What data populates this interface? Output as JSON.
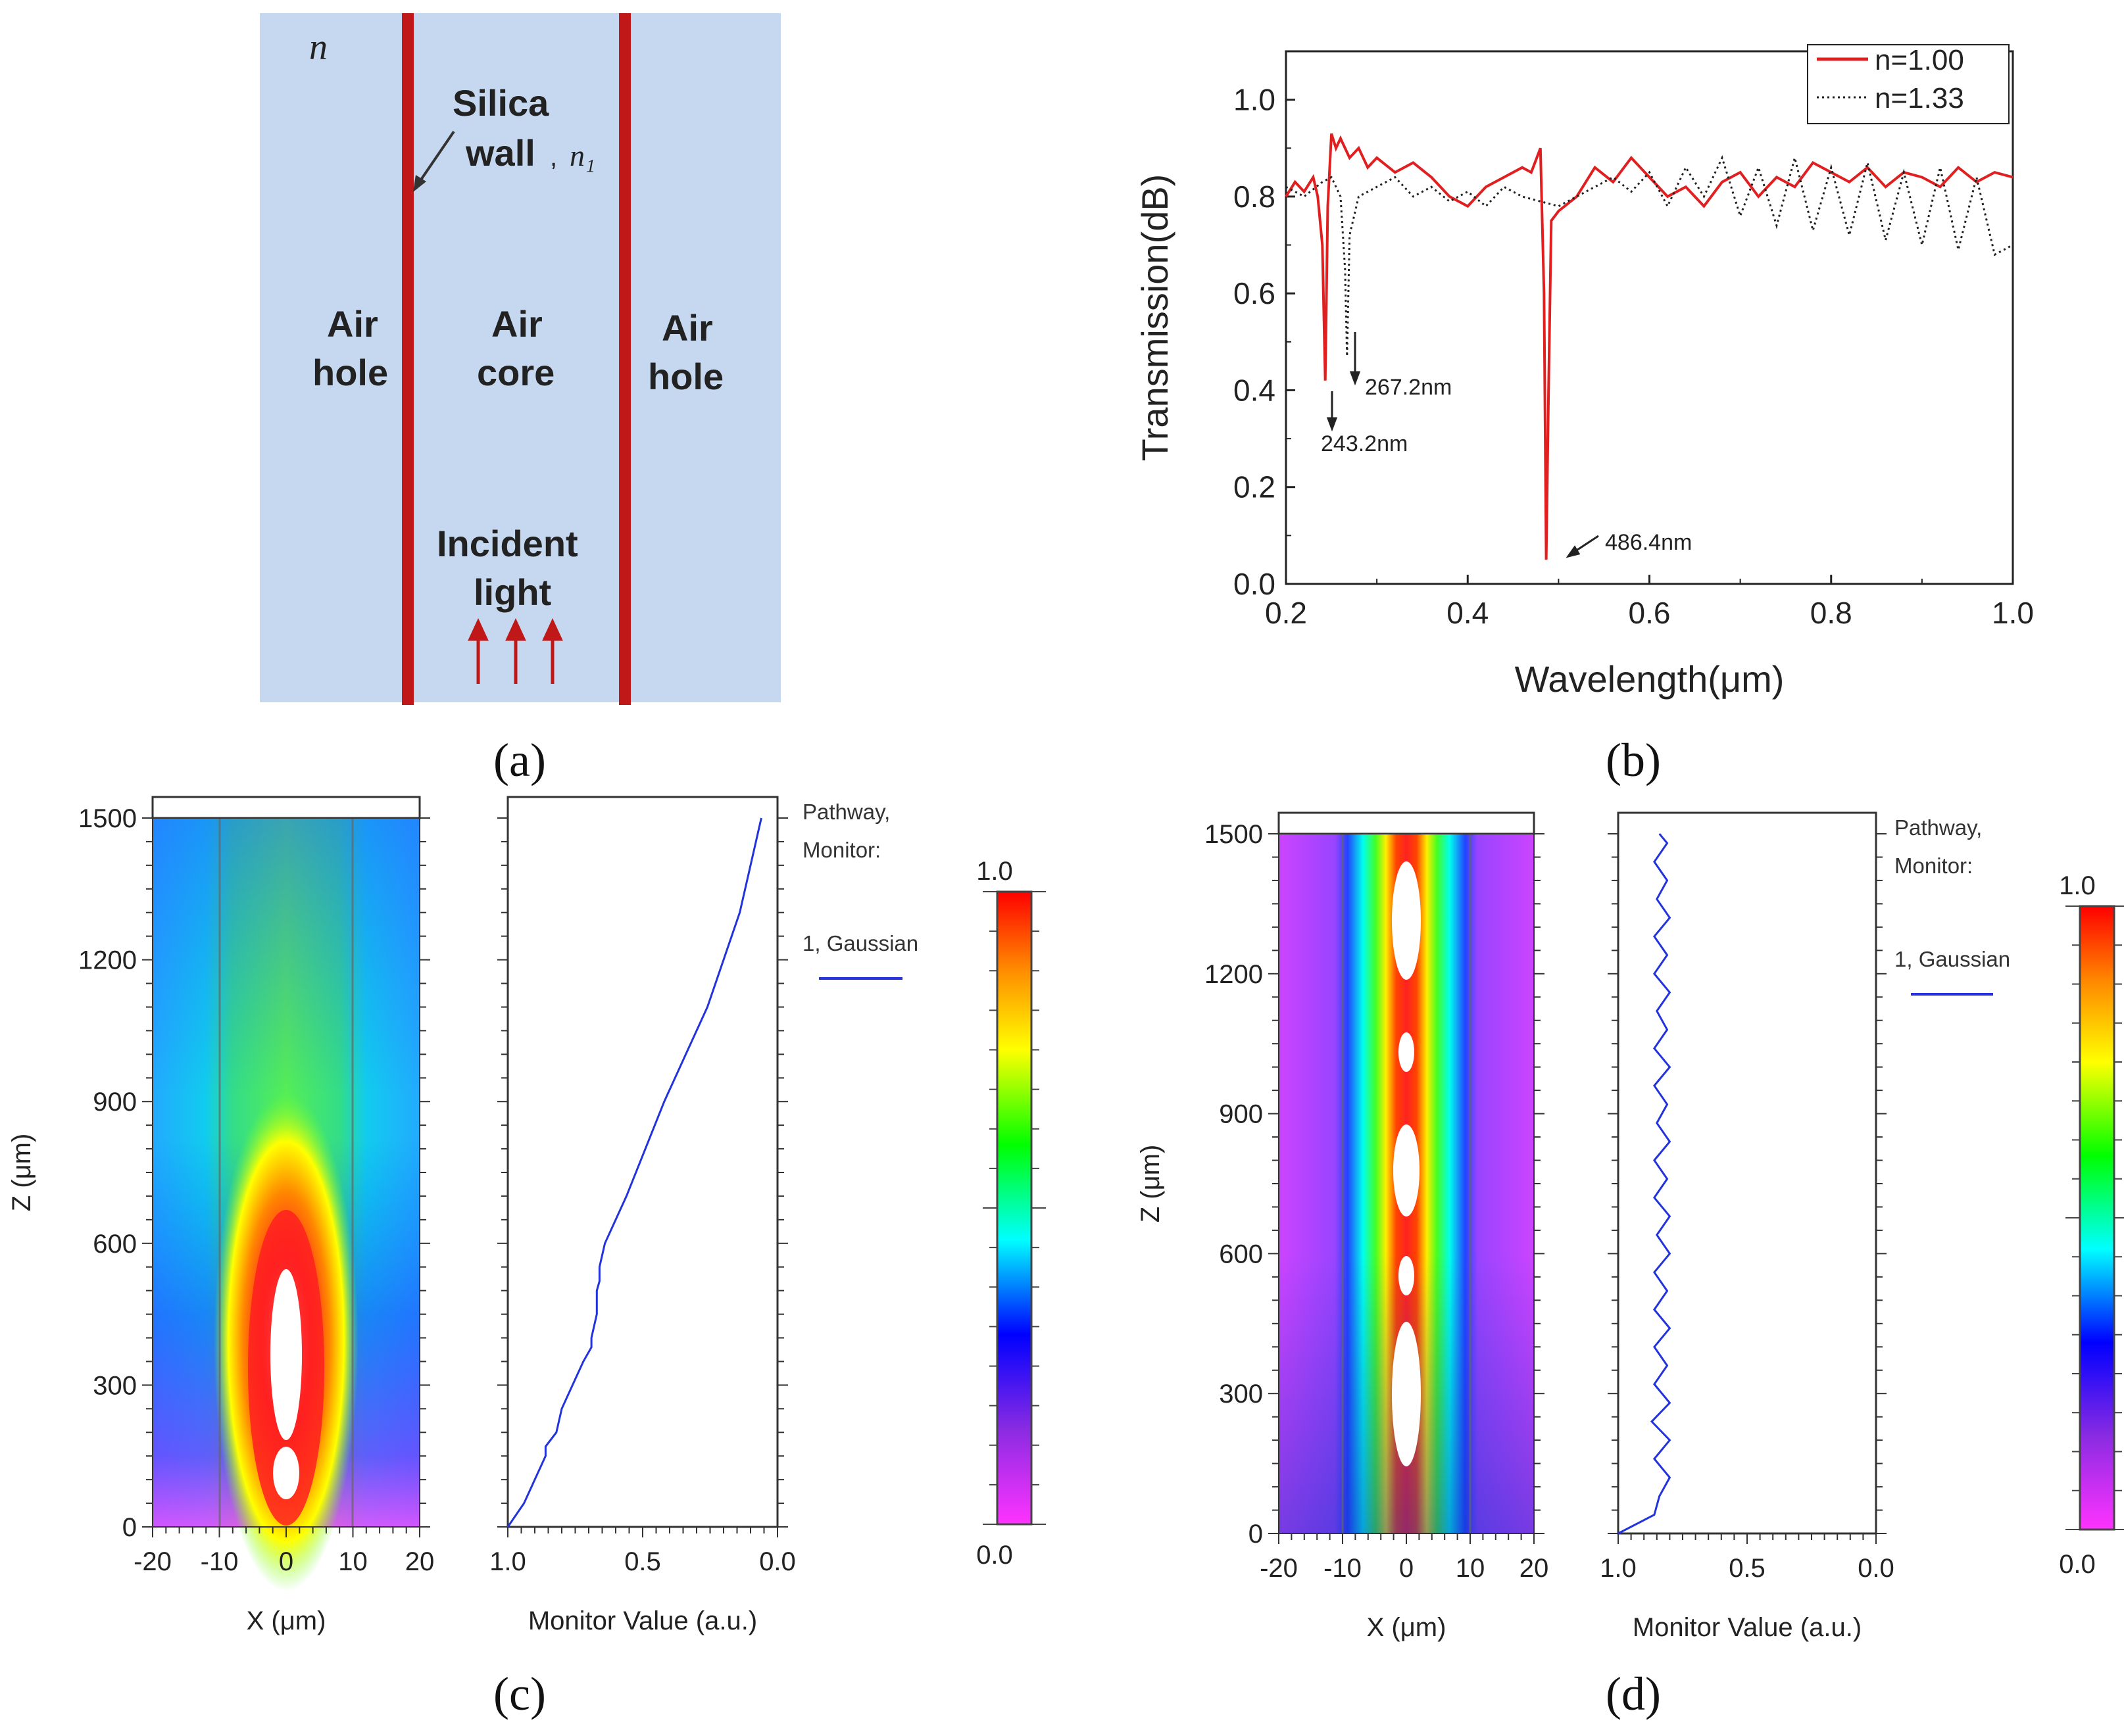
{
  "panels": {
    "a": {
      "label": "(a)",
      "n_label": "n",
      "silica": "Silica",
      "wall": "wall",
      "n1_label": "n₁",
      "air_hole": "Air",
      "hole": "hole",
      "air": "Air",
      "core": "core",
      "incident": "Incident",
      "light": "light",
      "colors": {
        "background": "#c6d8ef",
        "wall": "#c01818",
        "arrow": "#c01818"
      }
    },
    "b": {
      "label": "(b)",
      "annotations": [
        "267.2nm",
        "243.2nm",
        "486.4nm"
      ]
    },
    "c": {
      "label": "(c)",
      "legend_title_1": "Pathway,",
      "legend_title_2": "Monitor:",
      "legend_entry": "1, Gaussian",
      "colorbar_max": "1.0",
      "colorbar_min": "0.0"
    },
    "d": {
      "label": "(d)",
      "legend_title_1": "Pathway,",
      "legend_title_2": "Monitor:",
      "legend_entry": "1, Gaussian",
      "colorbar_max": "1.0",
      "colorbar_min": "0.0"
    }
  },
  "chart_data": [
    {
      "id": "b",
      "type": "line",
      "title": "",
      "xlabel": "Wavelength(μm)",
      "ylabel": "Transmission(dB)",
      "xlim": [
        0.2,
        1.0
      ],
      "ylim": [
        0.0,
        1.1
      ],
      "xticks": [
        "0.2",
        "0.4",
        "0.6",
        "0.8",
        "1.0"
      ],
      "yticks": [
        "0.0",
        "0.2",
        "0.4",
        "0.6",
        "0.8",
        "1.0"
      ],
      "legend": [
        "n=1.00",
        "n=1.33"
      ],
      "legend_position": "top-right",
      "series": [
        {
          "name": "n=1.00",
          "color": "#e02020",
          "style": "solid",
          "x": [
            0.2,
            0.21,
            0.22,
            0.23,
            0.235,
            0.24,
            0.2432,
            0.246,
            0.25,
            0.255,
            0.26,
            0.27,
            0.28,
            0.29,
            0.3,
            0.32,
            0.34,
            0.36,
            0.38,
            0.4,
            0.42,
            0.44,
            0.46,
            0.47,
            0.48,
            0.484,
            0.4864,
            0.489,
            0.492,
            0.5,
            0.52,
            0.54,
            0.56,
            0.58,
            0.6,
            0.62,
            0.64,
            0.66,
            0.68,
            0.7,
            0.72,
            0.74,
            0.76,
            0.78,
            0.8,
            0.82,
            0.84,
            0.86,
            0.88,
            0.9,
            0.92,
            0.94,
            0.96,
            0.98,
            1.0
          ],
          "y": [
            0.8,
            0.83,
            0.81,
            0.84,
            0.8,
            0.7,
            0.42,
            0.78,
            0.93,
            0.9,
            0.92,
            0.88,
            0.9,
            0.86,
            0.88,
            0.85,
            0.87,
            0.84,
            0.8,
            0.78,
            0.82,
            0.84,
            0.86,
            0.85,
            0.9,
            0.6,
            0.05,
            0.4,
            0.75,
            0.77,
            0.8,
            0.86,
            0.83,
            0.88,
            0.84,
            0.8,
            0.82,
            0.78,
            0.83,
            0.85,
            0.8,
            0.84,
            0.82,
            0.87,
            0.85,
            0.83,
            0.86,
            0.82,
            0.85,
            0.84,
            0.82,
            0.86,
            0.83,
            0.85,
            0.84
          ]
        },
        {
          "name": "n=1.33",
          "color": "#202020",
          "style": "dotted",
          "x": [
            0.2,
            0.22,
            0.24,
            0.25,
            0.26,
            0.265,
            0.2672,
            0.27,
            0.28,
            0.3,
            0.32,
            0.34,
            0.36,
            0.38,
            0.4,
            0.42,
            0.44,
            0.46,
            0.48,
            0.5,
            0.52,
            0.54,
            0.56,
            0.58,
            0.6,
            0.62,
            0.64,
            0.66,
            0.68,
            0.7,
            0.72,
            0.74,
            0.76,
            0.78,
            0.8,
            0.82,
            0.84,
            0.86,
            0.88,
            0.9,
            0.92,
            0.94,
            0.96,
            0.98,
            1.0
          ],
          "y": [
            0.82,
            0.8,
            0.83,
            0.84,
            0.8,
            0.65,
            0.47,
            0.72,
            0.8,
            0.82,
            0.84,
            0.8,
            0.82,
            0.79,
            0.81,
            0.78,
            0.82,
            0.8,
            0.79,
            0.78,
            0.8,
            0.82,
            0.84,
            0.81,
            0.85,
            0.78,
            0.86,
            0.8,
            0.88,
            0.76,
            0.86,
            0.74,
            0.88,
            0.73,
            0.86,
            0.72,
            0.87,
            0.71,
            0.85,
            0.7,
            0.86,
            0.69,
            0.84,
            0.68,
            0.7
          ]
        }
      ]
    },
    {
      "id": "c_field",
      "type": "heatmap",
      "xlabel": "X (μm)",
      "ylabel": "Z (μm)",
      "xlim": [
        -20,
        20
      ],
      "ylim": [
        0,
        1500
      ],
      "xticks": [
        "-20",
        "-10",
        "0",
        "10",
        "20"
      ],
      "yticks": [
        "0",
        "300",
        "600",
        "900",
        "1200",
        "1500"
      ],
      "wall_positions_x": [
        -10,
        10
      ]
    },
    {
      "id": "c_monitor",
      "type": "line",
      "xlabel": "Monitor Value (a.u.)",
      "xlim": [
        1.0,
        0.0
      ],
      "ylim": [
        0,
        1500
      ],
      "xticks": [
        "1.0",
        "0.5",
        "0.0"
      ],
      "series": [
        {
          "name": "1, Gaussian",
          "color": "#2233dd",
          "z": [
            0,
            50,
            100,
            150,
            170,
            200,
            250,
            300,
            350,
            380,
            400,
            450,
            500,
            520,
            550,
            600,
            650,
            700,
            800,
            900,
            1000,
            1100,
            1200,
            1300,
            1350,
            1400,
            1450,
            1500
          ],
          "value": [
            1.0,
            0.94,
            0.9,
            0.86,
            0.86,
            0.82,
            0.8,
            0.76,
            0.72,
            0.69,
            0.69,
            0.67,
            0.67,
            0.66,
            0.66,
            0.64,
            0.6,
            0.56,
            0.49,
            0.42,
            0.34,
            0.26,
            0.2,
            0.14,
            0.12,
            0.1,
            0.08,
            0.06
          ]
        }
      ]
    },
    {
      "id": "d_field",
      "type": "heatmap",
      "xlabel": "X (μm)",
      "ylabel": "Z (μm)",
      "xlim": [
        -20,
        20
      ],
      "ylim": [
        0,
        1500
      ],
      "xticks": [
        "-20",
        "-10",
        "0",
        "10",
        "20"
      ],
      "yticks": [
        "0",
        "300",
        "600",
        "900",
        "1200",
        "1500"
      ],
      "wall_positions_x": [
        -10,
        10
      ]
    },
    {
      "id": "d_monitor",
      "type": "line",
      "xlabel": "Monitor Value (a.u.)",
      "xlim": [
        1.0,
        0.0
      ],
      "ylim": [
        0,
        1500
      ],
      "xticks": [
        "1.0",
        "0.5",
        "0.0"
      ],
      "series": [
        {
          "name": "1, Gaussian",
          "color": "#2233dd",
          "z": [
            0,
            40,
            80,
            120,
            160,
            200,
            240,
            280,
            320,
            360,
            400,
            440,
            480,
            520,
            560,
            600,
            640,
            680,
            720,
            760,
            800,
            840,
            880,
            920,
            960,
            1000,
            1040,
            1080,
            1120,
            1160,
            1200,
            1240,
            1280,
            1320,
            1360,
            1400,
            1440,
            1480,
            1500
          ],
          "value": [
            1.0,
            0.86,
            0.84,
            0.8,
            0.86,
            0.8,
            0.87,
            0.8,
            0.86,
            0.81,
            0.86,
            0.8,
            0.86,
            0.81,
            0.86,
            0.8,
            0.85,
            0.8,
            0.86,
            0.81,
            0.86,
            0.8,
            0.85,
            0.81,
            0.86,
            0.8,
            0.86,
            0.81,
            0.85,
            0.8,
            0.86,
            0.81,
            0.86,
            0.8,
            0.85,
            0.81,
            0.86,
            0.81,
            0.84
          ]
        }
      ]
    }
  ]
}
